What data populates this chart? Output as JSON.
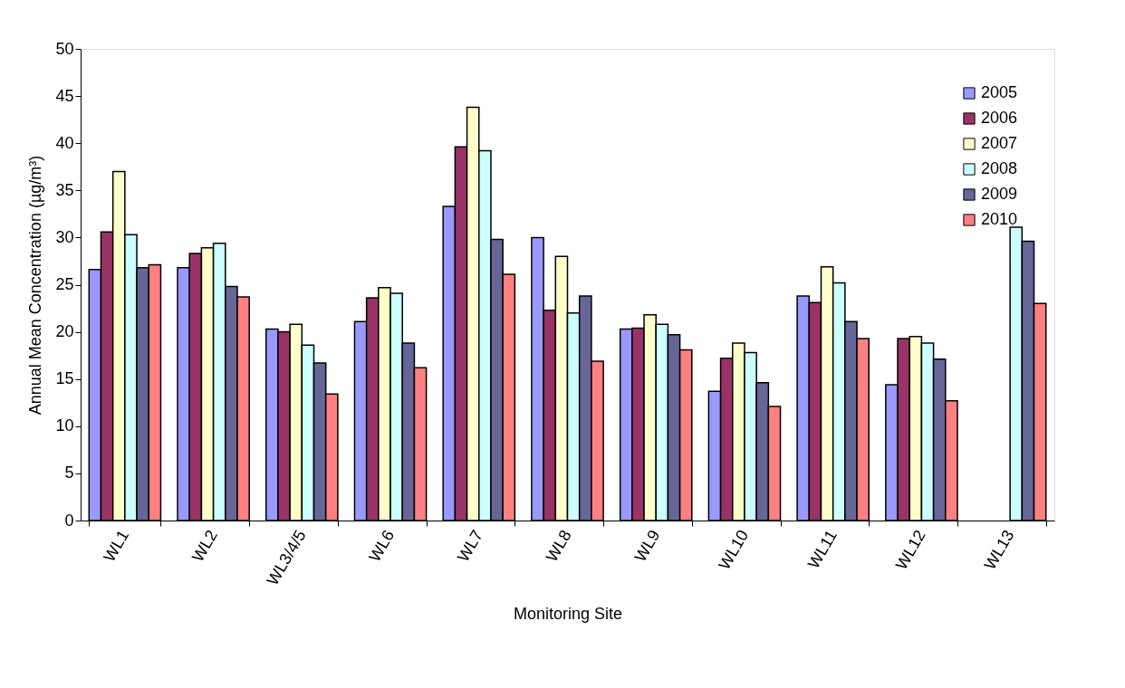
{
  "chart_data": {
    "type": "bar",
    "xlabel": "Monitoring Site",
    "ylabel": "Annual Mean Concentration (µg/m³)",
    "categories": [
      "WL1",
      "WL2",
      "WL3/4/5",
      "WL6",
      "WL7",
      "WL8",
      "WL9",
      "WL10",
      "WL11",
      "WL12",
      "WL13"
    ],
    "series": [
      {
        "name": "2005",
        "color": "#9999ff",
        "values": [
          26.6,
          26.8,
          20.3,
          21.1,
          33.3,
          30.0,
          20.3,
          13.7,
          23.8,
          14.4,
          null
        ]
      },
      {
        "name": "2006",
        "color": "#993366",
        "values": [
          30.6,
          28.3,
          20.0,
          23.6,
          39.6,
          22.3,
          20.4,
          17.2,
          23.1,
          19.3,
          null
        ]
      },
      {
        "name": "2007",
        "color": "#ffffcc",
        "values": [
          37.0,
          28.9,
          20.8,
          24.7,
          43.8,
          28.0,
          21.8,
          18.8,
          26.9,
          19.5,
          null
        ]
      },
      {
        "name": "2008",
        "color": "#ccffff",
        "values": [
          30.3,
          29.4,
          18.6,
          24.1,
          39.2,
          22.0,
          20.8,
          17.8,
          25.2,
          18.8,
          31.1
        ]
      },
      {
        "name": "2009",
        "color": "#666699",
        "values": [
          26.8,
          24.8,
          16.7,
          18.8,
          29.8,
          23.8,
          19.7,
          14.6,
          21.1,
          17.1,
          29.6
        ]
      },
      {
        "name": "2010",
        "color": "#ff8080",
        "values": [
          27.1,
          23.7,
          13.4,
          16.2,
          26.1,
          16.9,
          18.1,
          12.1,
          19.3,
          12.7,
          23.0
        ]
      }
    ],
    "ylim": [
      0,
      50
    ],
    "yticks": [
      0,
      5,
      10,
      15,
      20,
      25,
      30,
      35,
      40,
      45,
      50
    ],
    "grid": false,
    "legend": "top right"
  }
}
